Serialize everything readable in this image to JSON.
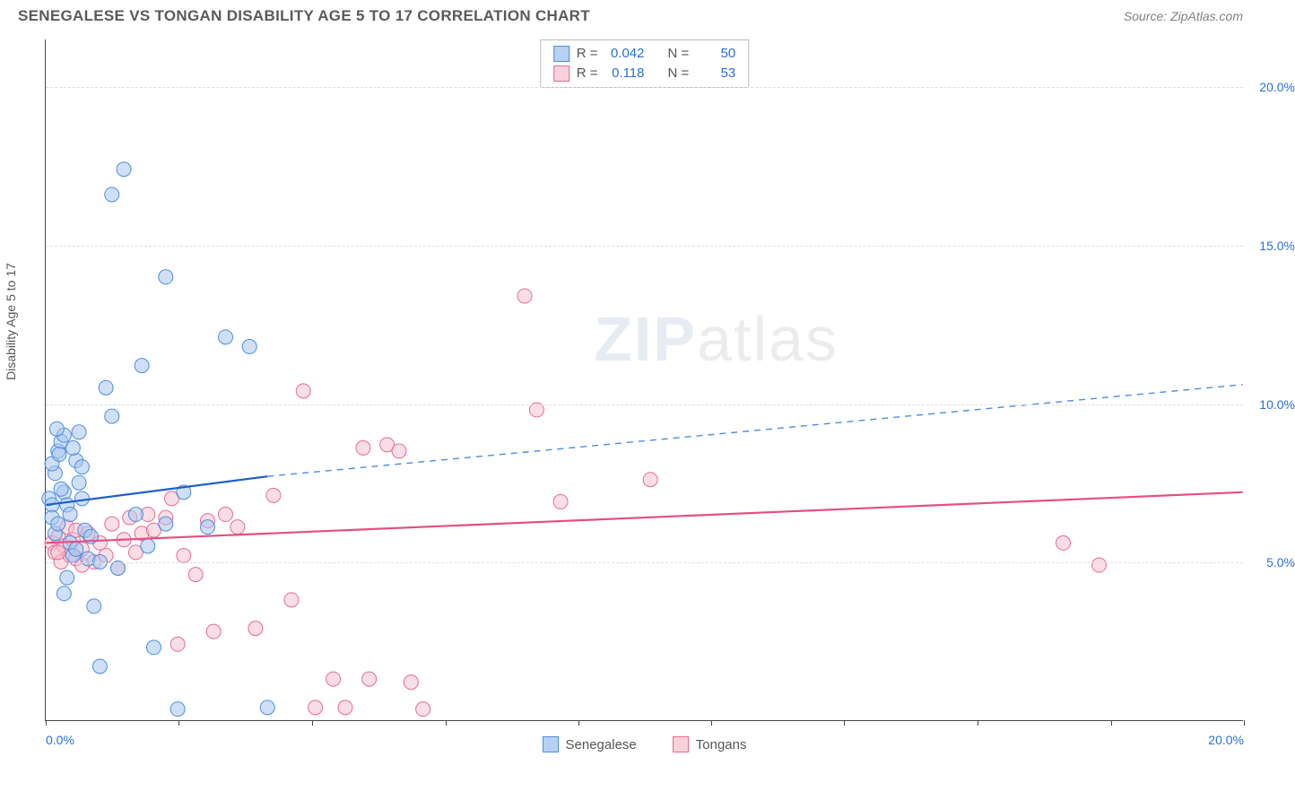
{
  "title": "SENEGALESE VS TONGAN DISABILITY AGE 5 TO 17 CORRELATION CHART",
  "source": "Source: ZipAtlas.com",
  "watermark_a": "ZIP",
  "watermark_b": "atlas",
  "chart": {
    "type": "scatter",
    "y_axis_title": "Disability Age 5 to 17",
    "xlim": [
      0,
      20
    ],
    "ylim": [
      0,
      21.5
    ],
    "x_ticks": [
      0,
      2.22,
      4.44,
      6.67,
      8.89,
      11.11,
      13.33,
      15.56,
      17.78,
      20
    ],
    "x_tick_labels_visible": {
      "0": "0.0%",
      "20": "20.0%"
    },
    "y_ticks": [
      5,
      10,
      15,
      20
    ],
    "y_tick_labels": {
      "5": "5.0%",
      "10": "10.0%",
      "15": "15.0%",
      "20": "20.0%"
    },
    "grid_color": "#dddddd",
    "background_color": "#ffffff",
    "tick_label_color": "#2a6fd6",
    "axis_title_color": "#555555",
    "marker_radius": 8,
    "marker_opacity": 0.55,
    "series": [
      {
        "name": "Senegalese",
        "color_fill": "#a8c7ee",
        "color_stroke": "#4b8dde",
        "legend_swatch_fill": "#b7d1f2",
        "legend_swatch_stroke": "#4b8dde",
        "r_value": "0.042",
        "n_value": "50",
        "points": [
          [
            0.05,
            7.0
          ],
          [
            0.1,
            6.8
          ],
          [
            0.1,
            6.4
          ],
          [
            0.15,
            5.9
          ],
          [
            0.2,
            6.2
          ],
          [
            0.2,
            8.5
          ],
          [
            0.25,
            8.8
          ],
          [
            0.3,
            9.0
          ],
          [
            0.3,
            7.2
          ],
          [
            0.35,
            6.8
          ],
          [
            0.4,
            6.5
          ],
          [
            0.4,
            5.6
          ],
          [
            0.45,
            5.2
          ],
          [
            0.5,
            5.4
          ],
          [
            0.5,
            8.2
          ],
          [
            0.55,
            7.5
          ],
          [
            0.6,
            7.0
          ],
          [
            0.65,
            6.0
          ],
          [
            0.7,
            5.1
          ],
          [
            0.75,
            5.8
          ],
          [
            0.8,
            3.6
          ],
          [
            0.9,
            1.7
          ],
          [
            1.0,
            10.5
          ],
          [
            1.1,
            9.6
          ],
          [
            1.1,
            16.6
          ],
          [
            1.3,
            17.4
          ],
          [
            1.5,
            6.5
          ],
          [
            1.6,
            11.2
          ],
          [
            1.7,
            5.5
          ],
          [
            1.8,
            2.3
          ],
          [
            2.0,
            14.0
          ],
          [
            2.0,
            6.2
          ],
          [
            2.2,
            0.35
          ],
          [
            2.3,
            7.2
          ],
          [
            2.7,
            6.1
          ],
          [
            3.0,
            12.1
          ],
          [
            3.4,
            11.8
          ],
          [
            3.7,
            0.4
          ],
          [
            0.3,
            4.0
          ],
          [
            0.35,
            4.5
          ],
          [
            0.9,
            5.0
          ],
          [
            1.2,
            4.8
          ],
          [
            0.15,
            7.8
          ],
          [
            0.25,
            7.3
          ],
          [
            0.6,
            8.0
          ],
          [
            0.45,
            8.6
          ],
          [
            0.55,
            9.1
          ],
          [
            0.18,
            9.2
          ],
          [
            0.1,
            8.1
          ],
          [
            0.22,
            8.4
          ]
        ],
        "trend_solid": {
          "x1": 0,
          "y1": 6.8,
          "x2": 3.7,
          "y2": 7.7,
          "color": "#1f5fc8",
          "width": 2.2
        },
        "trend_dash": {
          "x1": 3.7,
          "y1": 7.7,
          "x2": 20,
          "y2": 10.6,
          "color": "#4b8dde",
          "width": 1.4
        }
      },
      {
        "name": "Tongans",
        "color_fill": "#f6c3d0",
        "color_stroke": "#e76a94",
        "legend_swatch_fill": "#f8d1db",
        "legend_swatch_stroke": "#e76a94",
        "r_value": "0.118",
        "n_value": "53",
        "points": [
          [
            0.1,
            5.6
          ],
          [
            0.15,
            5.3
          ],
          [
            0.2,
            5.8
          ],
          [
            0.25,
            5.0
          ],
          [
            0.3,
            5.5
          ],
          [
            0.35,
            6.1
          ],
          [
            0.4,
            5.2
          ],
          [
            0.45,
            5.7
          ],
          [
            0.5,
            6.0
          ],
          [
            0.6,
            5.4
          ],
          [
            0.7,
            5.9
          ],
          [
            0.8,
            5.0
          ],
          [
            0.9,
            5.6
          ],
          [
            1.0,
            5.2
          ],
          [
            1.1,
            6.2
          ],
          [
            1.2,
            4.8
          ],
          [
            1.3,
            5.7
          ],
          [
            1.4,
            6.4
          ],
          [
            1.5,
            5.3
          ],
          [
            1.6,
            5.9
          ],
          [
            1.7,
            6.5
          ],
          [
            1.8,
            6.0
          ],
          [
            2.0,
            6.4
          ],
          [
            2.1,
            7.0
          ],
          [
            2.2,
            2.4
          ],
          [
            2.3,
            5.2
          ],
          [
            2.5,
            4.6
          ],
          [
            2.7,
            6.3
          ],
          [
            2.8,
            2.8
          ],
          [
            3.0,
            6.5
          ],
          [
            3.2,
            6.1
          ],
          [
            3.5,
            2.9
          ],
          [
            3.8,
            7.1
          ],
          [
            4.1,
            3.8
          ],
          [
            4.3,
            10.4
          ],
          [
            4.5,
            0.4
          ],
          [
            4.8,
            1.3
          ],
          [
            5.0,
            0.4
          ],
          [
            5.3,
            8.6
          ],
          [
            5.4,
            1.3
          ],
          [
            5.7,
            8.7
          ],
          [
            5.9,
            8.5
          ],
          [
            6.1,
            1.2
          ],
          [
            6.3,
            0.35
          ],
          [
            8.0,
            13.4
          ],
          [
            8.2,
            9.8
          ],
          [
            8.6,
            6.9
          ],
          [
            10.1,
            7.6
          ],
          [
            17.0,
            5.6
          ],
          [
            17.6,
            4.9
          ],
          [
            0.5,
            5.1
          ],
          [
            0.6,
            4.9
          ],
          [
            0.2,
            5.3
          ]
        ],
        "trend_solid": {
          "x1": 0,
          "y1": 5.6,
          "x2": 20,
          "y2": 7.2,
          "color": "#e44e85",
          "width": 2.2
        },
        "trend_dash": null
      }
    ],
    "stats_box": {
      "r_label": "R =",
      "n_label": "N ="
    },
    "bottom_legend_labels": [
      "Senegalese",
      "Tongans"
    ]
  }
}
